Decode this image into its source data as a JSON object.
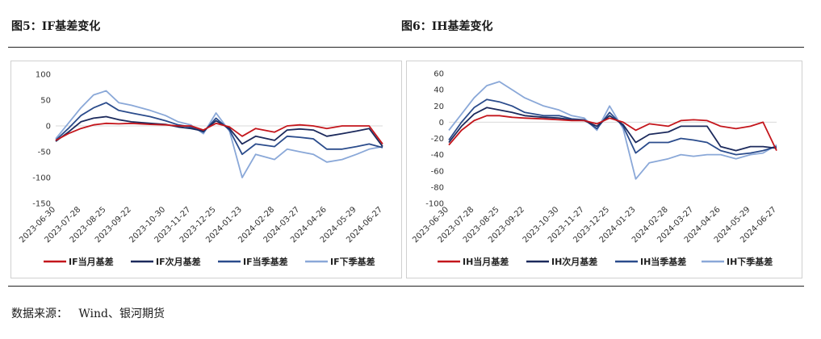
{
  "titles": {
    "left": "图5：IF基差变化",
    "right": "图6：IH基差变化"
  },
  "source": {
    "label": "数据来源：",
    "text": "Wind、银河期货"
  },
  "colors": {
    "series1": "#c4161c",
    "series2": "#1c2a5c",
    "series3": "#2b4c8c",
    "series4": "#8aa8d8"
  },
  "chart_data": [
    {
      "type": "line",
      "title": "图5：IF基差变化",
      "xlabel": "",
      "ylabel": "",
      "ylim": [
        -150,
        100
      ],
      "yticks": [
        100,
        50,
        0,
        -50,
        -100,
        -150
      ],
      "xticklabels": [
        "2023-06-30",
        "2023-07-28",
        "2023-08-25",
        "2023-09-22",
        "2023-10-30",
        "2023-11-27",
        "2023-12-25",
        "2024-01-23",
        "2024-02-28",
        "2024-03-27",
        "2024-04-26",
        "2024-05-29",
        "2024-06-27"
      ],
      "grid": false,
      "legend_position": "bottom",
      "x": [
        "2023-06-30",
        "2023-07-14",
        "2023-07-28",
        "2023-08-11",
        "2023-08-25",
        "2023-09-08",
        "2023-09-22",
        "2023-10-13",
        "2023-10-30",
        "2023-11-13",
        "2023-11-27",
        "2023-12-11",
        "2023-12-25",
        "2024-01-09",
        "2024-01-23",
        "2024-02-07",
        "2024-02-28",
        "2024-03-13",
        "2024-03-27",
        "2024-04-11",
        "2024-04-26",
        "2024-05-13",
        "2024-05-29",
        "2024-06-12",
        "2024-06-27"
      ],
      "series": [
        {
          "name": "IF当月基差",
          "values": [
            -28,
            -15,
            -5,
            2,
            5,
            4,
            5,
            3,
            2,
            0,
            0,
            -8,
            5,
            -2,
            -20,
            -5,
            -12,
            0,
            2,
            0,
            -5,
            0,
            0,
            0,
            -35
          ]
        },
        {
          "name": "IF次月基差",
          "values": [
            -30,
            -12,
            8,
            15,
            18,
            12,
            8,
            5,
            3,
            -2,
            -5,
            -10,
            10,
            -5,
            -35,
            -20,
            -28,
            -8,
            -6,
            -8,
            -20,
            -15,
            -10,
            -5,
            -40
          ]
        },
        {
          "name": "IF当季基差",
          "values": [
            -28,
            -5,
            20,
            35,
            45,
            30,
            25,
            18,
            10,
            2,
            -2,
            -12,
            15,
            -8,
            -55,
            -35,
            -40,
            -20,
            -22,
            -25,
            -45,
            -45,
            -40,
            -35,
            -42
          ]
        },
        {
          "name": "IF下季基差",
          "values": [
            -25,
            5,
            35,
            60,
            68,
            45,
            40,
            30,
            20,
            8,
            2,
            -15,
            25,
            -10,
            -100,
            -55,
            -65,
            -45,
            -50,
            -55,
            -70,
            -65,
            -55,
            -45,
            -40
          ]
        }
      ]
    },
    {
      "type": "line",
      "title": "图6：IH基差变化",
      "xlabel": "",
      "ylabel": "",
      "ylim": [
        -100,
        60
      ],
      "yticks": [
        60,
        40,
        20,
        0,
        -20,
        -40,
        -60,
        -80,
        -100
      ],
      "xticklabels": [
        "2023-06-30",
        "2023-07-28",
        "2023-08-25",
        "2023-09-22",
        "2023-10-30",
        "2023-11-27",
        "2023-12-25",
        "2024-01-23",
        "2024-02-28",
        "2024-03-27",
        "2024-04-26",
        "2024-05-29",
        "2024-06-27"
      ],
      "grid": false,
      "legend_position": "bottom",
      "x": [
        "2023-06-30",
        "2023-07-14",
        "2023-07-28",
        "2023-08-11",
        "2023-08-25",
        "2023-09-08",
        "2023-09-22",
        "2023-10-13",
        "2023-10-30",
        "2023-11-13",
        "2023-11-27",
        "2023-12-11",
        "2023-12-25",
        "2024-01-09",
        "2024-01-23",
        "2024-02-07",
        "2024-02-28",
        "2024-03-13",
        "2024-03-27",
        "2024-04-11",
        "2024-04-26",
        "2024-05-13",
        "2024-05-29",
        "2024-06-12",
        "2024-06-27"
      ],
      "series": [
        {
          "name": "IH当月基差",
          "values": [
            -28,
            -10,
            2,
            8,
            8,
            6,
            5,
            4,
            3,
            2,
            2,
            -2,
            5,
            0,
            -10,
            -2,
            -5,
            2,
            3,
            2,
            -5,
            -8,
            -5,
            0,
            -35
          ]
        },
        {
          "name": "IH次月基差",
          "values": [
            -25,
            -5,
            10,
            18,
            15,
            12,
            8,
            6,
            5,
            3,
            2,
            -5,
            8,
            -3,
            -25,
            -15,
            -12,
            -5,
            -5,
            -5,
            -30,
            -35,
            -30,
            -30,
            -32
          ]
        },
        {
          "name": "IH当季基差",
          "values": [
            -22,
            0,
            18,
            28,
            25,
            20,
            12,
            8,
            8,
            4,
            3,
            -8,
            12,
            -5,
            -38,
            -25,
            -25,
            -20,
            -22,
            -25,
            -35,
            -40,
            -38,
            -35,
            -30
          ]
        },
        {
          "name": "IH下季基差",
          "values": [
            -10,
            10,
            30,
            45,
            50,
            40,
            30,
            20,
            15,
            8,
            5,
            -10,
            20,
            -8,
            -70,
            -50,
            -45,
            -40,
            -42,
            -40,
            -40,
            -45,
            -40,
            -38,
            -28
          ]
        }
      ]
    }
  ]
}
